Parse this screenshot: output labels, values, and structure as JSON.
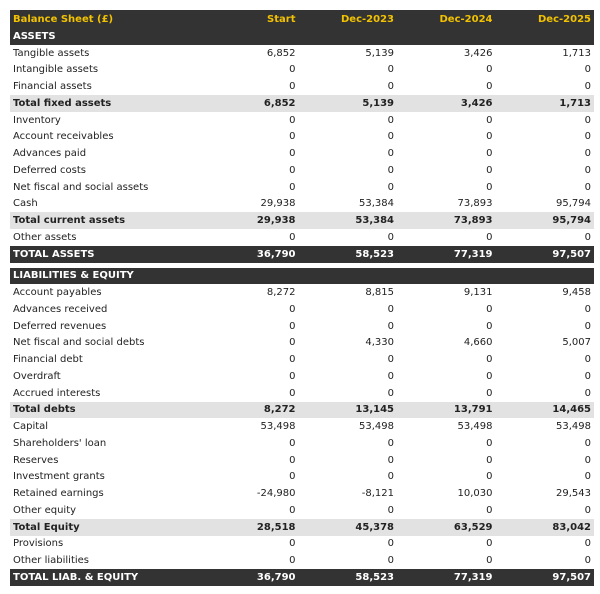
{
  "header": {
    "title": "Balance Sheet (£)",
    "columns": [
      "Start",
      "Dec-2023",
      "Dec-2024",
      "Dec-2025"
    ]
  },
  "sections": [
    {
      "title": "ASSETS",
      "groups": [
        {
          "rows": [
            {
              "label": "Tangible assets",
              "values": [
                "6,852",
                "5,139",
                "3,426",
                "1,713"
              ]
            },
            {
              "label": "Intangible assets",
              "values": [
                "0",
                "0",
                "0",
                "0"
              ]
            },
            {
              "label": "Financial assets",
              "values": [
                "0",
                "0",
                "0",
                "0"
              ]
            }
          ],
          "subtotal": {
            "label": "Total fixed assets",
            "values": [
              "6,852",
              "5,139",
              "3,426",
              "1,713"
            ]
          }
        },
        {
          "rows": [
            {
              "label": "Inventory",
              "values": [
                "0",
                "0",
                "0",
                "0"
              ]
            },
            {
              "label": "Account receivables",
              "values": [
                "0",
                "0",
                "0",
                "0"
              ]
            },
            {
              "label": "Advances paid",
              "values": [
                "0",
                "0",
                "0",
                "0"
              ]
            },
            {
              "label": "Deferred costs",
              "values": [
                "0",
                "0",
                "0",
                "0"
              ]
            },
            {
              "label": "Net fiscal and social assets",
              "values": [
                "0",
                "0",
                "0",
                "0"
              ]
            },
            {
              "label": "Cash",
              "values": [
                "29,938",
                "53,384",
                "73,893",
                "95,794"
              ]
            }
          ],
          "subtotal": {
            "label": "Total current assets",
            "values": [
              "29,938",
              "53,384",
              "73,893",
              "95,794"
            ]
          }
        },
        {
          "rows": [
            {
              "label": "Other assets",
              "values": [
                "0",
                "0",
                "0",
                "0"
              ]
            }
          ]
        }
      ],
      "total": {
        "label": "TOTAL ASSETS",
        "values": [
          "36,790",
          "58,523",
          "77,319",
          "97,507"
        ]
      }
    },
    {
      "title": "LIABILITIES & EQUITY",
      "groups": [
        {
          "rows": [
            {
              "label": "Account payables",
              "values": [
                "8,272",
                "8,815",
                "9,131",
                "9,458"
              ]
            },
            {
              "label": "Advances received",
              "values": [
                "0",
                "0",
                "0",
                "0"
              ]
            },
            {
              "label": "Deferred revenues",
              "values": [
                "0",
                "0",
                "0",
                "0"
              ]
            },
            {
              "label": "Net fiscal and social debts",
              "values": [
                "0",
                "4,330",
                "4,660",
                "5,007"
              ]
            },
            {
              "label": "Financial debt",
              "values": [
                "0",
                "0",
                "0",
                "0"
              ]
            },
            {
              "label": "Overdraft",
              "values": [
                "0",
                "0",
                "0",
                "0"
              ]
            },
            {
              "label": "Accrued interests",
              "values": [
                "0",
                "0",
                "0",
                "0"
              ]
            }
          ],
          "subtotal": {
            "label": "Total debts",
            "values": [
              "8,272",
              "13,145",
              "13,791",
              "14,465"
            ]
          }
        },
        {
          "rows": [
            {
              "label": "Capital",
              "values": [
                "53,498",
                "53,498",
                "53,498",
                "53,498"
              ]
            },
            {
              "label": "Shareholders' loan",
              "values": [
                "0",
                "0",
                "0",
                "0"
              ]
            },
            {
              "label": "Reserves",
              "values": [
                "0",
                "0",
                "0",
                "0"
              ]
            },
            {
              "label": "Investment grants",
              "values": [
                "0",
                "0",
                "0",
                "0"
              ]
            },
            {
              "label": "Retained earnings",
              "values": [
                "-24,980",
                "-8,121",
                "10,030",
                "29,543"
              ]
            },
            {
              "label": "Other equity",
              "values": [
                "0",
                "0",
                "0",
                "0"
              ]
            }
          ],
          "subtotal": {
            "label": "Total Equity",
            "values": [
              "28,518",
              "45,378",
              "63,529",
              "83,042"
            ]
          }
        },
        {
          "rows": [
            {
              "label": "Provisions",
              "values": [
                "0",
                "0",
                "0",
                "0"
              ]
            },
            {
              "label": "Other liabilities",
              "values": [
                "0",
                "0",
                "0",
                "0"
              ]
            }
          ]
        }
      ],
      "total": {
        "label": "TOTAL LIAB. & EQUITY",
        "values": [
          "36,790",
          "58,523",
          "77,319",
          "97,507"
        ]
      }
    }
  ]
}
